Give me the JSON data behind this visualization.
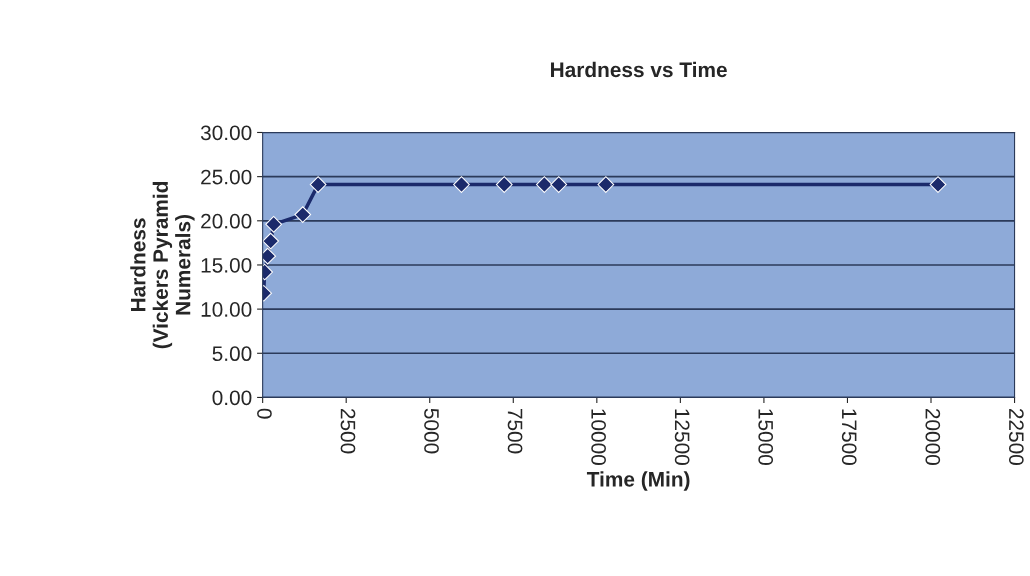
{
  "chart_data": {
    "type": "line",
    "title": "Hardness vs Time",
    "xlabel": "Time (Min)",
    "ylabel": "Hardness\n(Vickers Pyramid\nNumerals)",
    "x": [
      30,
      60,
      150,
      240,
      330,
      1200,
      1660,
      5950,
      7230,
      8430,
      8860,
      10270,
      20210
    ],
    "series": [
      {
        "color": "#1b2a6b",
        "values": [
          11.8,
          14.2,
          16.0,
          17.7,
          19.6,
          20.7,
          24.1,
          24.1,
          24.1,
          24.1,
          24.1,
          24.1,
          24.1
        ]
      }
    ],
    "xlim": [
      0,
      22500
    ],
    "xticks": [
      0,
      2500,
      5000,
      7500,
      10000,
      12500,
      15000,
      17500,
      20000,
      22500
    ],
    "ylim": [
      0,
      30
    ],
    "yticks": [
      {
        "value": 0,
        "label": "0.00"
      },
      {
        "value": 5,
        "label": "5.00"
      },
      {
        "value": 10,
        "label": "10.00"
      },
      {
        "value": 15,
        "label": "15.00"
      },
      {
        "value": 20,
        "label": "20.00"
      },
      {
        "value": 25,
        "label": "25.00"
      },
      {
        "value": 30,
        "label": "30.00"
      }
    ],
    "grid": "y",
    "marker": "diamond",
    "line_style": "solid",
    "legend": false
  }
}
